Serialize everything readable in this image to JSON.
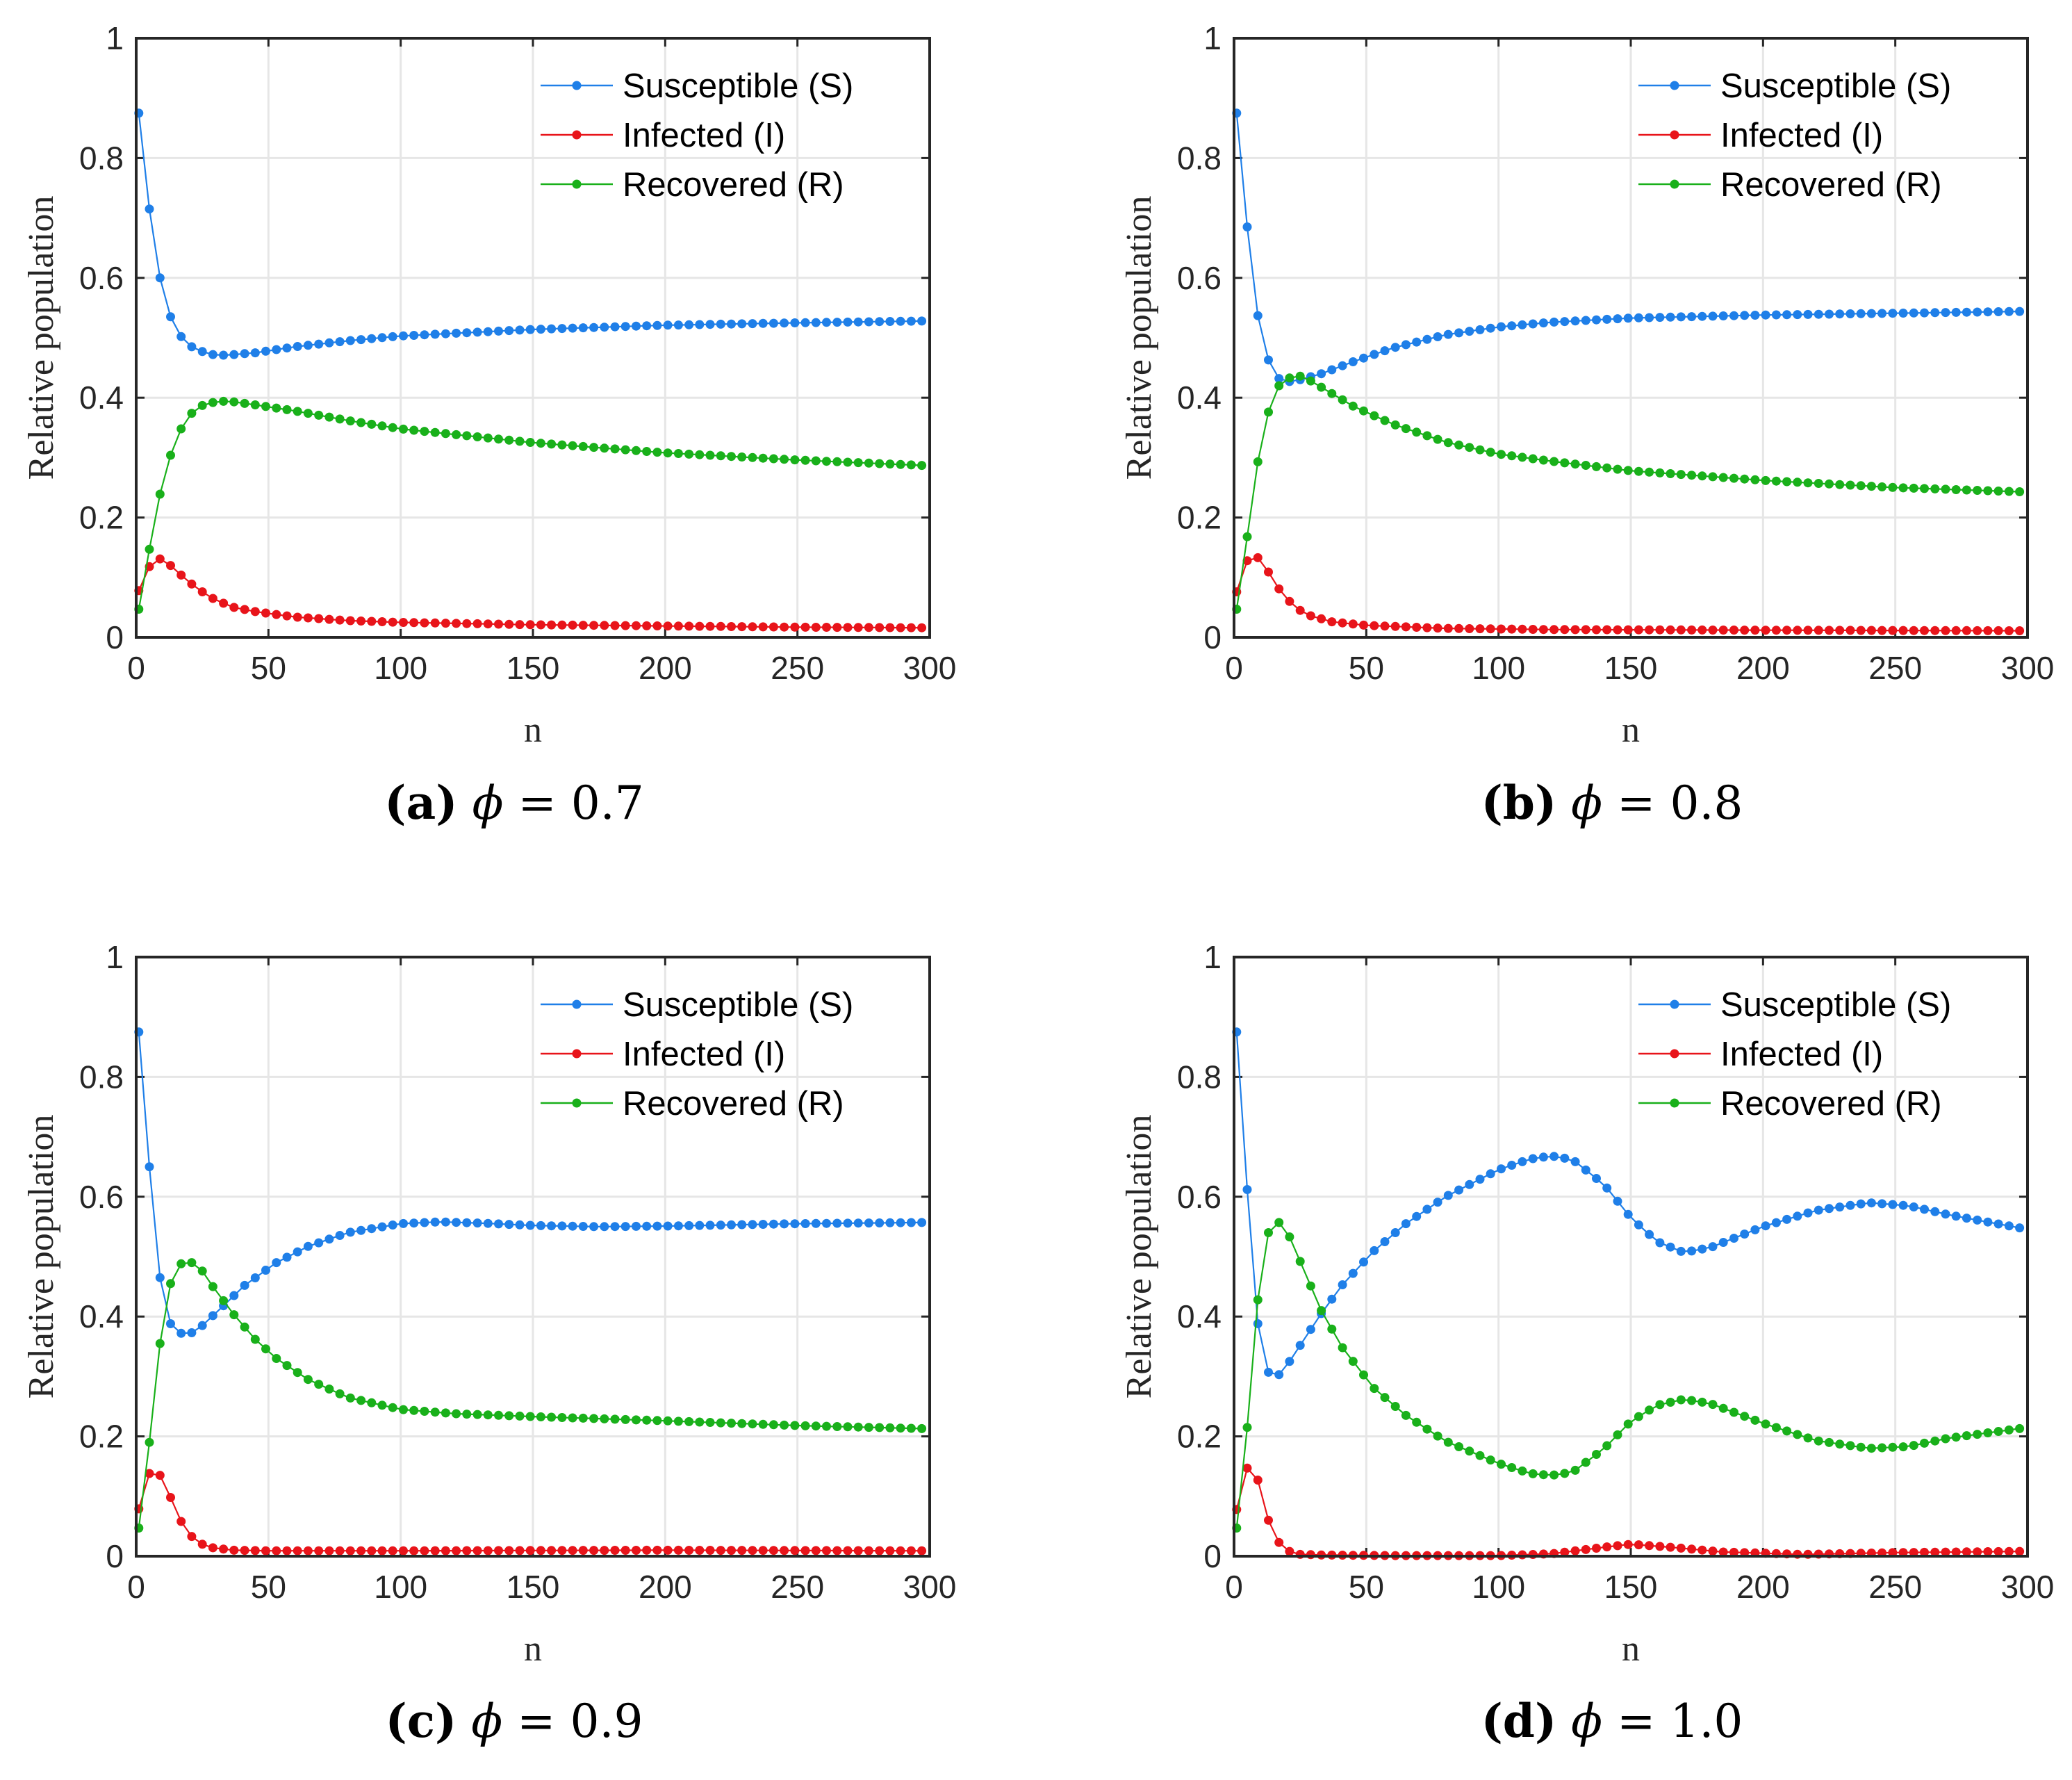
{
  "figure": {
    "colors": {
      "S": "#1f7fe8",
      "I": "#e8141a",
      "R": "#19b01a",
      "axis": "#262626",
      "grid": "#e6e6e6"
    }
  },
  "chart_data": [
    {
      "type": "line",
      "panel": "a",
      "caption": {
        "tag": "(a)",
        "symbol": "ϕ",
        "equals": "=",
        "value": "0.7"
      },
      "xlabel": "n",
      "ylabel": "Relative population",
      "xlim": [
        0,
        300
      ],
      "ylim": [
        0,
        1
      ],
      "xticks": [
        "0",
        "50",
        "100",
        "150",
        "200",
        "250",
        "300"
      ],
      "yticks": [
        "0",
        "0.2",
        "0.4",
        "0.6",
        "0.8",
        "1"
      ],
      "grid": true,
      "legend_position": "top-right",
      "legend": [
        "Susceptible (S)",
        "Infected (I)",
        "Recovered (R)"
      ],
      "x_start": 1,
      "x_step": 4,
      "points": 75,
      "series": [
        {
          "name": "Susceptible (S)",
          "key": "S",
          "anchors": [
            [
              1,
              0.875
            ],
            [
              5,
              0.715
            ],
            [
              9,
              0.6
            ],
            [
              13,
              0.535
            ],
            [
              17,
              0.502
            ],
            [
              21,
              0.485
            ],
            [
              25,
              0.477
            ],
            [
              29,
              0.472
            ],
            [
              33,
              0.471
            ],
            [
              37,
              0.472
            ],
            [
              45,
              0.475
            ],
            [
              60,
              0.485
            ],
            [
              80,
              0.495
            ],
            [
              100,
              0.503
            ],
            [
              150,
              0.514
            ],
            [
              200,
              0.521
            ],
            [
              250,
              0.525
            ],
            [
              297,
              0.528
            ]
          ]
        },
        {
          "name": "Infected (I)",
          "key": "I",
          "anchors": [
            [
              1,
              0.078
            ],
            [
              5,
              0.118
            ],
            [
              9,
              0.131
            ],
            [
              13,
              0.12
            ],
            [
              17,
              0.104
            ],
            [
              21,
              0.089
            ],
            [
              25,
              0.076
            ],
            [
              29,
              0.065
            ],
            [
              33,
              0.057
            ],
            [
              37,
              0.05
            ],
            [
              45,
              0.043
            ],
            [
              60,
              0.034
            ],
            [
              80,
              0.028
            ],
            [
              100,
              0.025
            ],
            [
              150,
              0.021
            ],
            [
              200,
              0.019
            ],
            [
              250,
              0.017
            ],
            [
              297,
              0.016
            ]
          ]
        },
        {
          "name": "Recovered (R)",
          "key": "R",
          "anchors": [
            [
              1,
              0.047
            ],
            [
              5,
              0.147
            ],
            [
              9,
              0.239
            ],
            [
              13,
              0.304
            ],
            [
              17,
              0.348
            ],
            [
              21,
              0.374
            ],
            [
              25,
              0.387
            ],
            [
              29,
              0.392
            ],
            [
              33,
              0.394
            ],
            [
              37,
              0.393
            ],
            [
              45,
              0.388
            ],
            [
              60,
              0.378
            ],
            [
              80,
              0.362
            ],
            [
              100,
              0.348
            ],
            [
              150,
              0.325
            ],
            [
              200,
              0.308
            ],
            [
              250,
              0.296
            ],
            [
              297,
              0.287
            ]
          ]
        }
      ]
    },
    {
      "type": "line",
      "panel": "b",
      "caption": {
        "tag": "(b)",
        "symbol": "ϕ",
        "equals": "=",
        "value": "0.8"
      },
      "xlabel": "n",
      "ylabel": "Relative population",
      "xlim": [
        0,
        300
      ],
      "ylim": [
        0,
        1
      ],
      "xticks": [
        "0",
        "50",
        "100",
        "150",
        "200",
        "250",
        "300"
      ],
      "yticks": [
        "0",
        "0.2",
        "0.4",
        "0.6",
        "0.8",
        "1"
      ],
      "grid": true,
      "legend_position": "top-right",
      "legend": [
        "Susceptible (S)",
        "Infected (I)",
        "Recovered (R)"
      ],
      "x_start": 1,
      "x_step": 4,
      "points": 75,
      "series": [
        {
          "name": "Susceptible (S)",
          "key": "S",
          "anchors": [
            [
              1,
              0.875
            ],
            [
              5,
              0.685
            ],
            [
              9,
              0.537
            ],
            [
              13,
              0.463
            ],
            [
              17,
              0.432
            ],
            [
              21,
              0.427
            ],
            [
              25,
              0.43
            ],
            [
              33,
              0.44
            ],
            [
              45,
              0.46
            ],
            [
              60,
              0.483
            ],
            [
              80,
              0.505
            ],
            [
              100,
              0.518
            ],
            [
              120,
              0.526
            ],
            [
              150,
              0.533
            ],
            [
              200,
              0.538
            ],
            [
              250,
              0.541
            ],
            [
              297,
              0.544
            ]
          ]
        },
        {
          "name": "Infected (I)",
          "key": "I",
          "anchors": [
            [
              1,
              0.076
            ],
            [
              5,
              0.128
            ],
            [
              9,
              0.133
            ],
            [
              13,
              0.109
            ],
            [
              17,
              0.081
            ],
            [
              21,
              0.06
            ],
            [
              25,
              0.045
            ],
            [
              29,
              0.036
            ],
            [
              37,
              0.026
            ],
            [
              50,
              0.02
            ],
            [
              80,
              0.015
            ],
            [
              120,
              0.013
            ],
            [
              200,
              0.012
            ],
            [
              297,
              0.011
            ]
          ]
        },
        {
          "name": "Recovered (R)",
          "key": "R",
          "anchors": [
            [
              1,
              0.047
            ],
            [
              5,
              0.168
            ],
            [
              9,
              0.293
            ],
            [
              13,
              0.376
            ],
            [
              17,
              0.42
            ],
            [
              21,
              0.433
            ],
            [
              25,
              0.436
            ],
            [
              29,
              0.428
            ],
            [
              37,
              0.407
            ],
            [
              45,
              0.386
            ],
            [
              60,
              0.356
            ],
            [
              80,
              0.326
            ],
            [
              100,
              0.306
            ],
            [
              120,
              0.294
            ],
            [
              150,
              0.278
            ],
            [
              200,
              0.262
            ],
            [
              250,
              0.25
            ],
            [
              297,
              0.243
            ]
          ]
        }
      ]
    },
    {
      "type": "line",
      "panel": "c",
      "caption": {
        "tag": "(c)",
        "symbol": "ϕ",
        "equals": "=",
        "value": "0.9"
      },
      "xlabel": "n",
      "ylabel": "Relative population",
      "xlim": [
        0,
        300
      ],
      "ylim": [
        0,
        1
      ],
      "xticks": [
        "0",
        "50",
        "100",
        "150",
        "200",
        "250",
        "300"
      ],
      "yticks": [
        "0",
        "0.2",
        "0.4",
        "0.6",
        "0.8",
        "1"
      ],
      "grid": true,
      "legend_position": "top-right",
      "legend": [
        "Susceptible (S)",
        "Infected (I)",
        "Recovered (R)"
      ],
      "x_start": 1,
      "x_step": 4,
      "points": 75,
      "series": [
        {
          "name": "Susceptible (S)",
          "key": "S",
          "anchors": [
            [
              1,
              0.875
            ],
            [
              5,
              0.65
            ],
            [
              9,
              0.465
            ],
            [
              13,
              0.388
            ],
            [
              17,
              0.372
            ],
            [
              21,
              0.373
            ],
            [
              25,
              0.385
            ],
            [
              33,
              0.418
            ],
            [
              41,
              0.452
            ],
            [
              53,
              0.49
            ],
            [
              65,
              0.517
            ],
            [
              80,
              0.54
            ],
            [
              100,
              0.555
            ],
            [
              115,
              0.558
            ],
            [
              130,
              0.556
            ],
            [
              150,
              0.552
            ],
            [
              175,
              0.55
            ],
            [
              200,
              0.551
            ],
            [
              250,
              0.555
            ],
            [
              297,
              0.557
            ]
          ]
        },
        {
          "name": "Infected (I)",
          "key": "I",
          "anchors": [
            [
              1,
              0.079
            ],
            [
              5,
              0.138
            ],
            [
              9,
              0.135
            ],
            [
              13,
              0.098
            ],
            [
              17,
              0.058
            ],
            [
              21,
              0.033
            ],
            [
              25,
              0.02
            ],
            [
              29,
              0.014
            ],
            [
              37,
              0.01
            ],
            [
              50,
              0.009
            ],
            [
              100,
              0.009
            ],
            [
              200,
              0.01
            ],
            [
              297,
              0.009
            ]
          ]
        },
        {
          "name": "Recovered (R)",
          "key": "R",
          "anchors": [
            [
              1,
              0.047
            ],
            [
              5,
              0.19
            ],
            [
              9,
              0.355
            ],
            [
              13,
              0.455
            ],
            [
              17,
              0.488
            ],
            [
              21,
              0.49
            ],
            [
              25,
              0.476
            ],
            [
              29,
              0.45
            ],
            [
              37,
              0.403
            ],
            [
              45,
              0.362
            ],
            [
              53,
              0.33
            ],
            [
              65,
              0.295
            ],
            [
              80,
              0.265
            ],
            [
              100,
              0.245
            ],
            [
              120,
              0.238
            ],
            [
              150,
              0.233
            ],
            [
              200,
              0.226
            ],
            [
              250,
              0.218
            ],
            [
              297,
              0.213
            ]
          ]
        }
      ]
    },
    {
      "type": "line",
      "panel": "d",
      "caption": {
        "tag": "(d)",
        "symbol": "ϕ",
        "equals": "=",
        "value": "1.0"
      },
      "xlabel": "n",
      "ylabel": "Relative population",
      "xlim": [
        0,
        300
      ],
      "ylim": [
        0,
        1
      ],
      "xticks": [
        "0",
        "50",
        "100",
        "150",
        "200",
        "250",
        "300"
      ],
      "yticks": [
        "0",
        "0.2",
        "0.4",
        "0.6",
        "0.8",
        "1"
      ],
      "grid": true,
      "legend_position": "top-right",
      "legend": [
        "Susceptible (S)",
        "Infected (I)",
        "Recovered (R)"
      ],
      "x_start": 1,
      "x_step": 4,
      "points": 75,
      "series": [
        {
          "name": "Susceptible (S)",
          "key": "S",
          "anchors": [
            [
              1,
              0.875
            ],
            [
              5,
              0.612
            ],
            [
              9,
              0.388
            ],
            [
              13,
              0.307
            ],
            [
              17,
              0.303
            ],
            [
              21,
              0.325
            ],
            [
              25,
              0.352
            ],
            [
              33,
              0.405
            ],
            [
              41,
              0.453
            ],
            [
              53,
              0.51
            ],
            [
              65,
              0.555
            ],
            [
              80,
              0.6
            ],
            [
              100,
              0.645
            ],
            [
              112,
              0.663
            ],
            [
              120,
              0.668
            ],
            [
              128,
              0.662
            ],
            [
              140,
              0.62
            ],
            [
              150,
              0.565
            ],
            [
              160,
              0.525
            ],
            [
              170,
              0.507
            ],
            [
              180,
              0.515
            ],
            [
              200,
              0.55
            ],
            [
              220,
              0.577
            ],
            [
              240,
              0.59
            ],
            [
              255,
              0.585
            ],
            [
              270,
              0.57
            ],
            [
              297,
              0.548
            ]
          ]
        },
        {
          "name": "Infected (I)",
          "key": "I",
          "anchors": [
            [
              1,
              0.078
            ],
            [
              5,
              0.147
            ],
            [
              9,
              0.127
            ],
            [
              13,
              0.06
            ],
            [
              17,
              0.023
            ],
            [
              21,
              0.008
            ],
            [
              25,
              0.003
            ],
            [
              33,
              0.002
            ],
            [
              60,
              0.001
            ],
            [
              100,
              0.001
            ],
            [
              120,
              0.004
            ],
            [
              140,
              0.015
            ],
            [
              150,
              0.02
            ],
            [
              165,
              0.015
            ],
            [
              185,
              0.007
            ],
            [
              215,
              0.003
            ],
            [
              250,
              0.006
            ],
            [
              297,
              0.008
            ]
          ]
        },
        {
          "name": "Recovered (R)",
          "key": "R",
          "anchors": [
            [
              1,
              0.047
            ],
            [
              5,
              0.215
            ],
            [
              9,
              0.428
            ],
            [
              13,
              0.54
            ],
            [
              17,
              0.557
            ],
            [
              21,
              0.533
            ],
            [
              25,
              0.492
            ],
            [
              33,
              0.41
            ],
            [
              41,
              0.348
            ],
            [
              53,
              0.28
            ],
            [
              65,
              0.235
            ],
            [
              80,
              0.192
            ],
            [
              100,
              0.155
            ],
            [
              112,
              0.138
            ],
            [
              120,
              0.135
            ],
            [
              128,
              0.14
            ],
            [
              140,
              0.18
            ],
            [
              150,
              0.225
            ],
            [
              160,
              0.252
            ],
            [
              170,
              0.262
            ],
            [
              180,
              0.255
            ],
            [
              200,
              0.222
            ],
            [
              220,
              0.193
            ],
            [
              240,
              0.18
            ],
            [
              255,
              0.183
            ],
            [
              270,
              0.197
            ],
            [
              297,
              0.213
            ]
          ]
        }
      ]
    }
  ]
}
